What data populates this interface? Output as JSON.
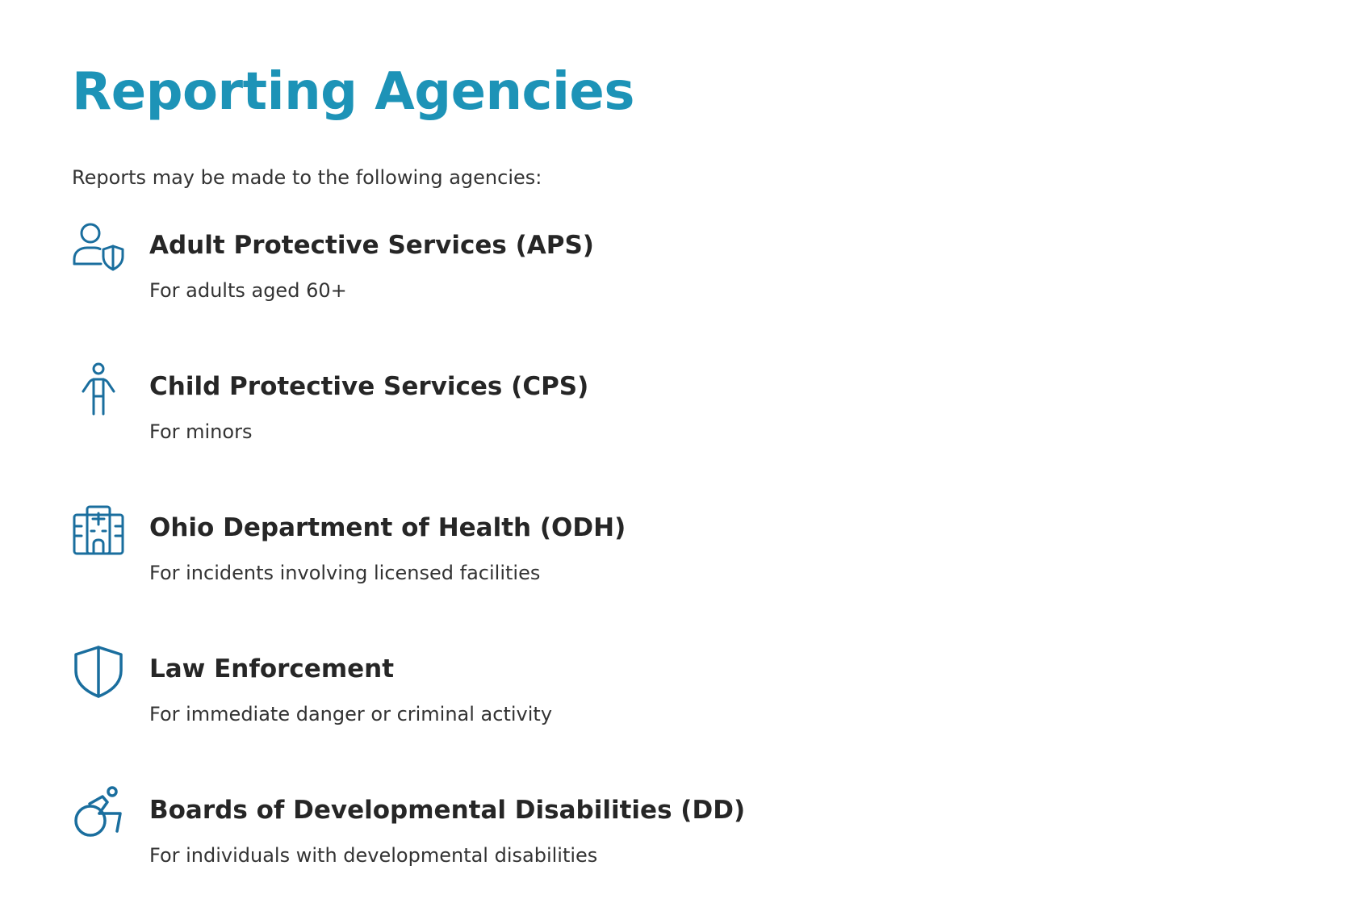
{
  "title": "Reporting Agencies",
  "intro": "Reports may be made to the following agencies:",
  "accent_color": "#1d93b7",
  "icon_color": "#1a6e9e",
  "agencies": [
    {
      "name": "Adult Protective Services (APS)",
      "description": "For adults aged 60+",
      "icon": "person-shield-icon"
    },
    {
      "name": "Child Protective Services (CPS)",
      "description": "For minors",
      "icon": "child-icon"
    },
    {
      "name": "Ohio Department of Health (ODH)",
      "description": "For incidents involving licensed facilities",
      "icon": "hospital-icon"
    },
    {
      "name": "Law Enforcement",
      "description": "For immediate danger or criminal activity",
      "icon": "shield-icon"
    },
    {
      "name": "Boards of Developmental Disabilities (DD)",
      "description": "For individuals with developmental disabilities",
      "icon": "wheelchair-icon"
    }
  ]
}
